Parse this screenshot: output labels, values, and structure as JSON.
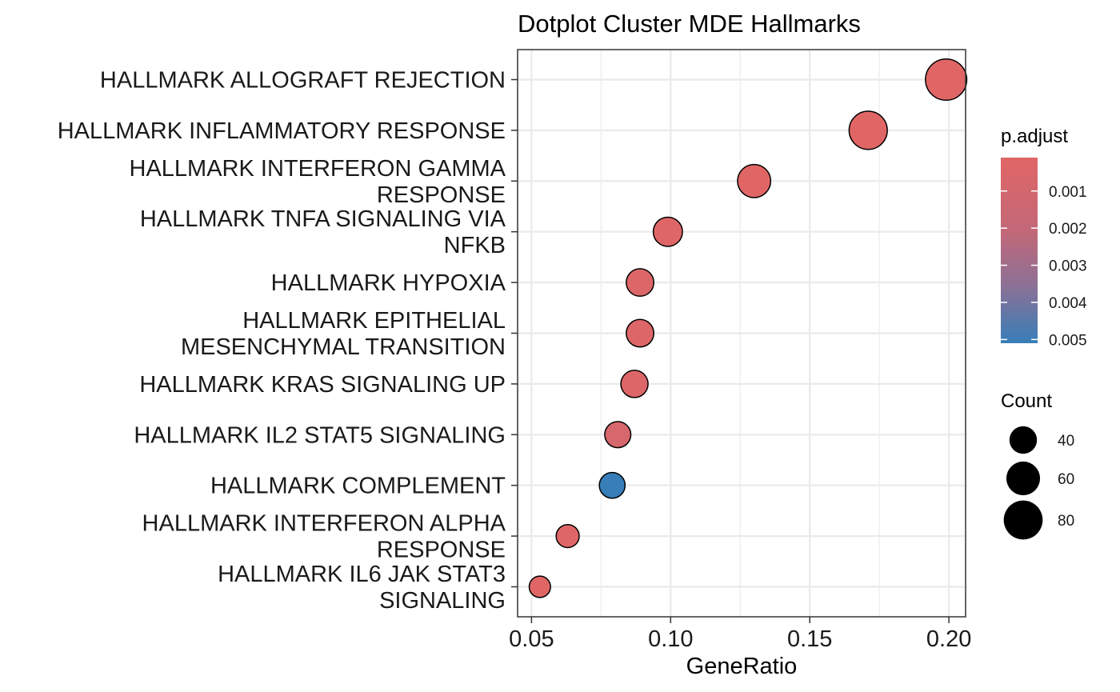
{
  "chart_data": {
    "type": "scatter",
    "title": "Dotplot Cluster MDE Hallmarks",
    "xlabel": "GeneRatio",
    "ylabel": "",
    "xlim": [
      0.045,
      0.206
    ],
    "xticks": [
      0.05,
      0.1,
      0.15,
      0.2
    ],
    "xtick_labels": [
      "0.05",
      "0.10",
      "0.15",
      "0.20"
    ],
    "grid": true,
    "categories": [
      [
        "HALLMARK ALLOGRAFT REJECTION"
      ],
      [
        "HALLMARK INFLAMMATORY RESPONSE"
      ],
      [
        "HALLMARK INTERFERON GAMMA",
        "RESPONSE"
      ],
      [
        "HALLMARK TNFA SIGNALING VIA",
        "NFKB"
      ],
      [
        "HALLMARK HYPOXIA"
      ],
      [
        "HALLMARK EPITHELIAL",
        "MESENCHYMAL TRANSITION"
      ],
      [
        "HALLMARK KRAS SIGNALING UP"
      ],
      [
        "HALLMARK IL2 STAT5 SIGNALING"
      ],
      [
        "HALLMARK COMPLEMENT"
      ],
      [
        "HALLMARK INTERFERON ALPHA",
        "RESPONSE"
      ],
      [
        "HALLMARK IL6 JAK STAT3",
        "SIGNALING"
      ]
    ],
    "points": [
      {
        "gene_ratio": 0.199,
        "count": 90,
        "p_adjust": 0.0001
      },
      {
        "gene_ratio": 0.171,
        "count": 77,
        "p_adjust": 0.0001
      },
      {
        "gene_ratio": 0.13,
        "count": 58,
        "p_adjust": 0.0001
      },
      {
        "gene_ratio": 0.099,
        "count": 45,
        "p_adjust": 0.0002
      },
      {
        "gene_ratio": 0.089,
        "count": 40,
        "p_adjust": 0.0003
      },
      {
        "gene_ratio": 0.089,
        "count": 40,
        "p_adjust": 0.0003
      },
      {
        "gene_ratio": 0.087,
        "count": 39,
        "p_adjust": 0.0003
      },
      {
        "gene_ratio": 0.081,
        "count": 36,
        "p_adjust": 0.0008
      },
      {
        "gene_ratio": 0.079,
        "count": 35,
        "p_adjust": 0.0051
      },
      {
        "gene_ratio": 0.063,
        "count": 28,
        "p_adjust": 0.0002
      },
      {
        "gene_ratio": 0.053,
        "count": 24,
        "p_adjust": 0.0001
      }
    ],
    "color_legend": {
      "title": "p.adjust",
      "ticks": [
        0.001,
        0.002,
        0.003,
        0.004,
        0.005
      ],
      "tick_labels": [
        "0.001",
        "0.002",
        "0.003",
        "0.004",
        "0.005"
      ],
      "range": [
        0.0001,
        0.0051
      ],
      "low_color": "#E06666",
      "high_color": "#377EB8"
    },
    "size_legend": {
      "title": "Count",
      "values": [
        40,
        60,
        80
      ],
      "labels": [
        "40",
        "60",
        "80"
      ]
    },
    "legend_position": "right",
    "point_stroke_color": "#000000",
    "grid_color": "#EBEBEB"
  }
}
